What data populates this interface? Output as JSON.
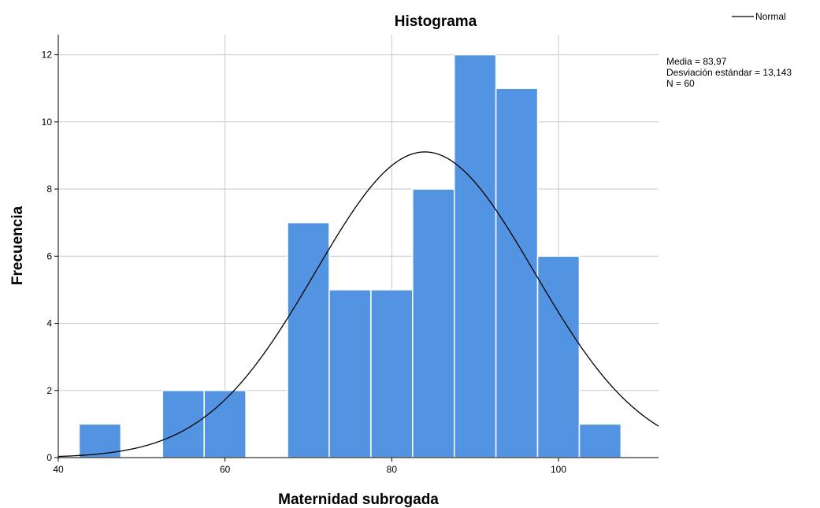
{
  "chart_data": {
    "type": "bar",
    "title": "Histograma",
    "xlabel": "Maternidad subrogada",
    "ylabel": "Frecuencia",
    "bin_width": 5,
    "bins": [
      {
        "from": 42.5,
        "to": 47.5,
        "count": 1
      },
      {
        "from": 47.5,
        "to": 52.5,
        "count": 0
      },
      {
        "from": 52.5,
        "to": 57.5,
        "count": 2
      },
      {
        "from": 57.5,
        "to": 62.5,
        "count": 2
      },
      {
        "from": 62.5,
        "to": 67.5,
        "count": 0
      },
      {
        "from": 67.5,
        "to": 72.5,
        "count": 7
      },
      {
        "from": 72.5,
        "to": 77.5,
        "count": 5
      },
      {
        "from": 77.5,
        "to": 82.5,
        "count": 5
      },
      {
        "from": 82.5,
        "to": 87.5,
        "count": 8
      },
      {
        "from": 87.5,
        "to": 92.5,
        "count": 12
      },
      {
        "from": 92.5,
        "to": 97.5,
        "count": 11
      },
      {
        "from": 97.5,
        "to": 102.5,
        "count": 6
      },
      {
        "from": 102.5,
        "to": 107.5,
        "count": 1
      }
    ],
    "xlim": [
      40,
      112
    ],
    "ylim": [
      0,
      12.6
    ],
    "x_ticks": [
      40,
      60,
      80,
      100
    ],
    "y_ticks": [
      0,
      2,
      4,
      6,
      8,
      10,
      12
    ],
    "grid": true,
    "bar_color": "#5294E2",
    "normal_curve": {
      "name": "Normal",
      "mean": 83.97,
      "sd": 13.143,
      "n": 60,
      "color": "#000000"
    },
    "legend": {
      "position": "top-right",
      "entries": [
        "Normal"
      ]
    },
    "stats_lines": [
      "Media = 83,97",
      "Desviación estándar = 13,143",
      "N = 60"
    ]
  }
}
